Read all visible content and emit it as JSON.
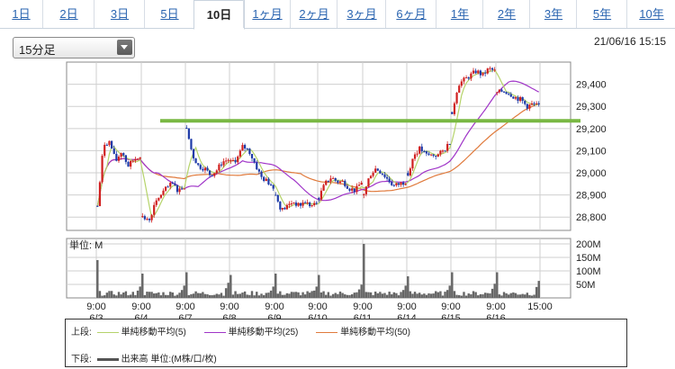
{
  "tabs": [
    "1日",
    "2日",
    "3日",
    "5日",
    "10日",
    "1ヶ月",
    "2ヶ月",
    "3ヶ月",
    "6ヶ月",
    "1年",
    "2年",
    "3年",
    "5年",
    "10年"
  ],
  "active_tab": "10日",
  "select": {
    "value": "15分足"
  },
  "timestamp": "21/06/16 15:15",
  "price_axis": [
    "29,400",
    "29,300",
    "29,200",
    "29,100",
    "29,000",
    "28,900",
    "28,800"
  ],
  "volume_axis": {
    "unit_label": "単位: M",
    "ticks": [
      "200M",
      "150M",
      "100M",
      "50M"
    ]
  },
  "time_labels": [
    "9:00",
    "9:00",
    "9:00",
    "9:00",
    "9:00",
    "9:00",
    "9:00",
    "9:00",
    "9:00",
    "9:00",
    "15:00"
  ],
  "date_labels": [
    "6/3",
    "6/4",
    "6/7",
    "6/8",
    "6/9",
    "6/10",
    "6/11",
    "6/14",
    "6/15",
    "6/16"
  ],
  "legend": {
    "upper_label": "上段:",
    "lower_label": "下段:",
    "ma5": "単純移動平均(5)",
    "ma25": "単純移動平均(25)",
    "ma50": "単純移動平均(50)",
    "volume": "出来高 単位:(M株/口/枚)"
  },
  "colors": {
    "ma5": "#b5d36a",
    "ma25": "#a035c8",
    "ma50": "#e07a3c",
    "up": "#d01f1f",
    "down": "#1d3aa8",
    "volume": "#666666",
    "trendline": "#79b843"
  },
  "chart_data": {
    "type": "candlestick",
    "price_range": [
      28740,
      29500
    ],
    "trendline_level": 29235,
    "days": [
      {
        "date": "6/3",
        "path": [
          28850,
          29130,
          29140,
          29050,
          29100,
          29030,
          29060,
          29080
        ]
      },
      {
        "date": "6/4",
        "path": [
          28800,
          28780,
          28850,
          28900,
          28930,
          28950,
          28920,
          28940
        ]
      },
      {
        "date": "6/7",
        "path": [
          29200,
          29080,
          29030,
          29020,
          28990,
          29010,
          29050,
          29060
        ]
      },
      {
        "date": "6/8",
        "path": [
          29050,
          29060,
          29120,
          29100,
          29040,
          28980,
          28960,
          28940
        ]
      },
      {
        "date": "6/9",
        "path": [
          28900,
          28830,
          28850,
          28870,
          28850,
          28870,
          28850,
          28860
        ]
      },
      {
        "date": "6/10",
        "path": [
          28890,
          28950,
          28980,
          28960,
          28960,
          28930,
          28920,
          28960
        ]
      },
      {
        "date": "6/11",
        "path": [
          28900,
          28990,
          29020,
          29000,
          28970,
          28940,
          28950,
          28960
        ]
      },
      {
        "date": "6/14",
        "path": [
          29000,
          29080,
          29110,
          29080,
          29080,
          29080,
          29100,
          29140
        ]
      },
      {
        "date": "6/15",
        "path": [
          29270,
          29400,
          29420,
          29440,
          29460,
          29440,
          29470,
          29460
        ]
      },
      {
        "date": "6/16",
        "path": [
          29360,
          29370,
          29360,
          29340,
          29330,
          29300,
          29310,
          29300
        ]
      }
    ],
    "volume_spikes": [
      {
        "date": "6/3",
        "open": 140,
        "close": 60
      },
      {
        "date": "6/4",
        "open": 90,
        "close": 65
      },
      {
        "date": "6/7",
        "open": 95,
        "close": 80
      },
      {
        "date": "6/8",
        "open": 85,
        "close": 60
      },
      {
        "date": "6/9",
        "open": 90,
        "close": 60
      },
      {
        "date": "6/10",
        "open": 85,
        "close": 70
      },
      {
        "date": "6/11",
        "open": 200,
        "close": 65
      },
      {
        "date": "6/14",
        "open": 80,
        "close": 65
      },
      {
        "date": "6/15",
        "open": 95,
        "close": 75
      },
      {
        "date": "6/16",
        "open": 95,
        "close": 90
      }
    ]
  }
}
